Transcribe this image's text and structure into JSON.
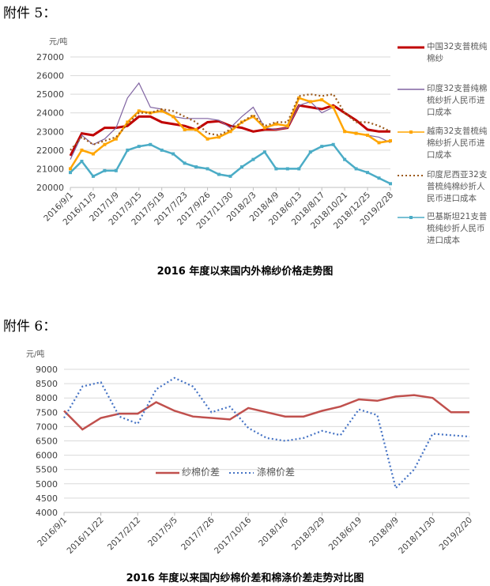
{
  "attachments": {
    "a5": "附件 5：",
    "a6": "附件 6："
  },
  "chart_data": [
    {
      "type": "line",
      "title": "2016 年度以来国内外棉纱价格走势图",
      "ylabel": "元/吨",
      "ylim": [
        20000,
        27000
      ],
      "yticks": [
        "20000",
        "21000",
        "22000",
        "23000",
        "24000",
        "25000",
        "26000",
        "27000"
      ],
      "xticks": [
        "2016/9/1",
        "2016/11/5",
        "2017/1/9",
        "2017/3/15",
        "2017/5/19",
        "2017/7/23",
        "2017/9/26",
        "2017/11/30",
        "2018/2/3",
        "2018/4/9",
        "2018/6/13",
        "2018/8/17",
        "2018/10/21",
        "2018/12/25",
        "2019/2/28"
      ],
      "legend_position": "right",
      "grid": true,
      "series": [
        {
          "name": "中国32支普梳纯棉纱",
          "color": "#c00000",
          "style": "solid-thick",
          "values": [
            21700,
            22900,
            22800,
            23200,
            23200,
            23300,
            23800,
            23800,
            23500,
            23400,
            23300,
            23100,
            23500,
            23550,
            23300,
            23200,
            23000,
            23100,
            23100,
            23200,
            24400,
            24300,
            24200,
            24400,
            24000,
            23600,
            23100,
            23000,
            23000
          ]
        },
        {
          "name": "印度32支普纯棉梳纱折人民币进口成本",
          "color": "#8064a2",
          "style": "solid-thin",
          "values": [
            21500,
            22800,
            22300,
            22600,
            23200,
            24800,
            25600,
            24300,
            24200,
            23800,
            23700,
            23700,
            23700,
            23600,
            23200,
            23800,
            24300,
            23200,
            23100,
            23200,
            24400,
            24600,
            24000,
            24300,
            23000,
            22900,
            22800,
            22700,
            22400
          ]
        },
        {
          "name": "越南32支普梳纯棉纱折人民币进口成本",
          "color": "#ffa500",
          "style": "marker",
          "values": [
            21000,
            22000,
            21800,
            22300,
            22600,
            23500,
            24100,
            24000,
            24100,
            23800,
            23100,
            23100,
            22600,
            22700,
            23000,
            23500,
            23800,
            23200,
            23400,
            23300,
            24800,
            24600,
            24700,
            24300,
            23000,
            22900,
            22800,
            22400,
            22500
          ]
        },
        {
          "name": "印度尼西亚32支普梳纯棉纱折人民币进口成本",
          "color": "#9c5a1c",
          "style": "dotted",
          "values": [
            22000,
            22700,
            22300,
            22500,
            22700,
            23400,
            24000,
            24000,
            24200,
            24100,
            23800,
            23500,
            22900,
            22800,
            23100,
            23500,
            23900,
            23300,
            23500,
            23500,
            24900,
            25000,
            24900,
            25000,
            24000,
            23500,
            23500,
            23300,
            23000
          ]
        },
        {
          "name": "巴基斯坦21支普梳纯纱折人民币进口成本",
          "color": "#4bacc6",
          "style": "marker",
          "values": [
            20800,
            21400,
            20600,
            20900,
            20900,
            22000,
            22200,
            22300,
            22000,
            21800,
            21300,
            21100,
            21000,
            20700,
            20600,
            21100,
            21500,
            21900,
            21000,
            21000,
            21000,
            21900,
            22200,
            22300,
            21500,
            21000,
            20800,
            20500,
            20200
          ]
        }
      ]
    },
    {
      "type": "line",
      "title": "2016 年度以来国内纱棉价差和棉涤价差走势对比图",
      "ylabel": "元/吨",
      "ylim": [
        4000,
        9000
      ],
      "yticks": [
        "4000",
        "4500",
        "5000",
        "5500",
        "6000",
        "6500",
        "7000",
        "7500",
        "8000",
        "8500",
        "9000"
      ],
      "xticks": [
        "2016/9/1",
        "2016/11/22",
        "2017/2/12",
        "2017/5/5",
        "2017/7/26",
        "2017/10/16",
        "2018/1/6",
        "2018/3/29",
        "2018/6/19",
        "2018/9/9",
        "2018/11/30",
        "2019/2/20"
      ],
      "legend_position": "center-left",
      "grid": true,
      "series": [
        {
          "name": "纱棉价差",
          "color": "#c0504d",
          "style": "solid",
          "values": [
            7550,
            6900,
            7300,
            7450,
            7450,
            7850,
            7550,
            7350,
            7300,
            7250,
            7650,
            7500,
            7350,
            7350,
            7550,
            7700,
            7950,
            7900,
            8050,
            8100,
            8000,
            7500,
            7500
          ]
        },
        {
          "name": "涤棉价差",
          "color": "#4472c4",
          "style": "dotted",
          "values": [
            7300,
            8400,
            8550,
            7350,
            7100,
            8300,
            8700,
            8400,
            7500,
            7700,
            6950,
            6600,
            6500,
            6600,
            6850,
            6700,
            7600,
            7400,
            4850,
            5500,
            6750,
            6700,
            6650
          ]
        }
      ]
    }
  ]
}
